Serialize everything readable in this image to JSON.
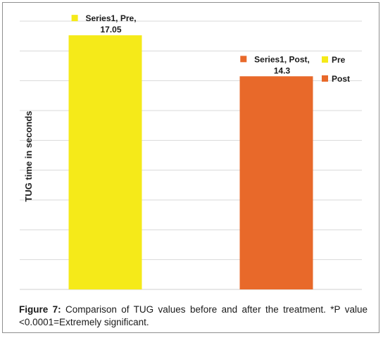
{
  "chart_data": {
    "type": "bar",
    "categories": [
      "Pre",
      "Post"
    ],
    "series": [
      {
        "name": "Series1",
        "values": [
          17.05,
          14.3
        ]
      }
    ],
    "point_colors": [
      "#f5ea19",
      "#e8692a"
    ],
    "data_labels": [
      {
        "line1": "Series1, Pre,",
        "line2": "17.05"
      },
      {
        "line1": "Series1, Post,",
        "line2": "14.3"
      }
    ],
    "ylabel": "TUG time in seconds",
    "xlabel": "",
    "ylim": [
      0,
      18
    ],
    "grid": true,
    "legend": {
      "position": "right",
      "entries": [
        {
          "label": "Pre",
          "color": "#f5ea19"
        },
        {
          "label": "Post",
          "color": "#e8692a"
        }
      ]
    }
  },
  "caption": {
    "lead": "Figure 7:",
    "text": " Comparison of TUG values before and after the treatment. *P value <0.0001=Extremely significant."
  }
}
